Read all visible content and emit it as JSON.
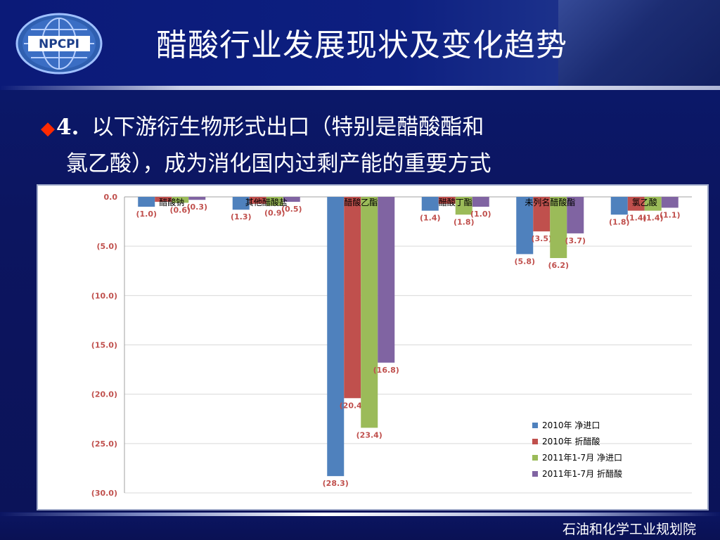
{
  "slide": {
    "logo_text": "NPCPI",
    "title": "醋酸行业发展现状及变化趋势",
    "bullet_number": "4.",
    "bullet_line1": "以下游衍生物形式出口（特别是醋酸酯和",
    "bullet_line2": "氯乙酸），成为消化国内过剩产能的重要方式",
    "footer": "石油和化学工业规划院"
  },
  "colors": {
    "series": [
      "#4f81bd",
      "#c0504d",
      "#9bbb59",
      "#8064a2"
    ],
    "value_label": "#c0504d",
    "tick_label": "#c0504d"
  },
  "chart_data": {
    "type": "bar",
    "categories": [
      "醋酸钠",
      "其他醋酸盐",
      "醋酸乙酯",
      "醋酸丁酯",
      "未列名醋酸酯",
      "氯乙酸"
    ],
    "series": [
      {
        "name": "2010年 净进口",
        "values": [
          -1.0,
          -1.3,
          -28.3,
          -1.4,
          -5.8,
          -1.8
        ]
      },
      {
        "name": "2010年 折醋酸",
        "values": [
          -0.5,
          -0.7,
          -20.4,
          -0.7,
          -3.5,
          -1.4
        ]
      },
      {
        "name": "2011年1-7月 净进口",
        "values": [
          -0.6,
          -0.9,
          -23.4,
          -1.8,
          -6.2,
          -1.4
        ]
      },
      {
        "name": "2011年1-7月 折醋酸",
        "values": [
          -0.3,
          -0.5,
          -16.8,
          -1.0,
          -3.7,
          -1.1
        ]
      }
    ],
    "labels": [
      [
        "(1.0)",
        "",
        "(0.6)",
        "(0.3)"
      ],
      [
        "(1.3)",
        "",
        "(0.9)",
        "(0.5)"
      ],
      [
        "(28.3)",
        "(20.4)",
        "(23.4)",
        "(16.8)"
      ],
      [
        "(1.4)",
        "",
        "(1.8)",
        "(1.0)"
      ],
      [
        "(5.8)",
        "(3.5)",
        "(6.2)",
        "(3.7)"
      ],
      [
        "(1.8)",
        "(1.4)",
        "(1.4)",
        "(1.1)"
      ]
    ],
    "ylim": [
      -30,
      0
    ],
    "yticks": [
      0,
      -5,
      -10,
      -15,
      -20,
      -25,
      -30
    ],
    "ytick_labels": [
      "0.0",
      "(5.0)",
      "(10.0)",
      "(15.0)",
      "(20.0)",
      "(25.0)",
      "(30.0)"
    ],
    "grid": true,
    "legend_position": "bottom-right"
  }
}
